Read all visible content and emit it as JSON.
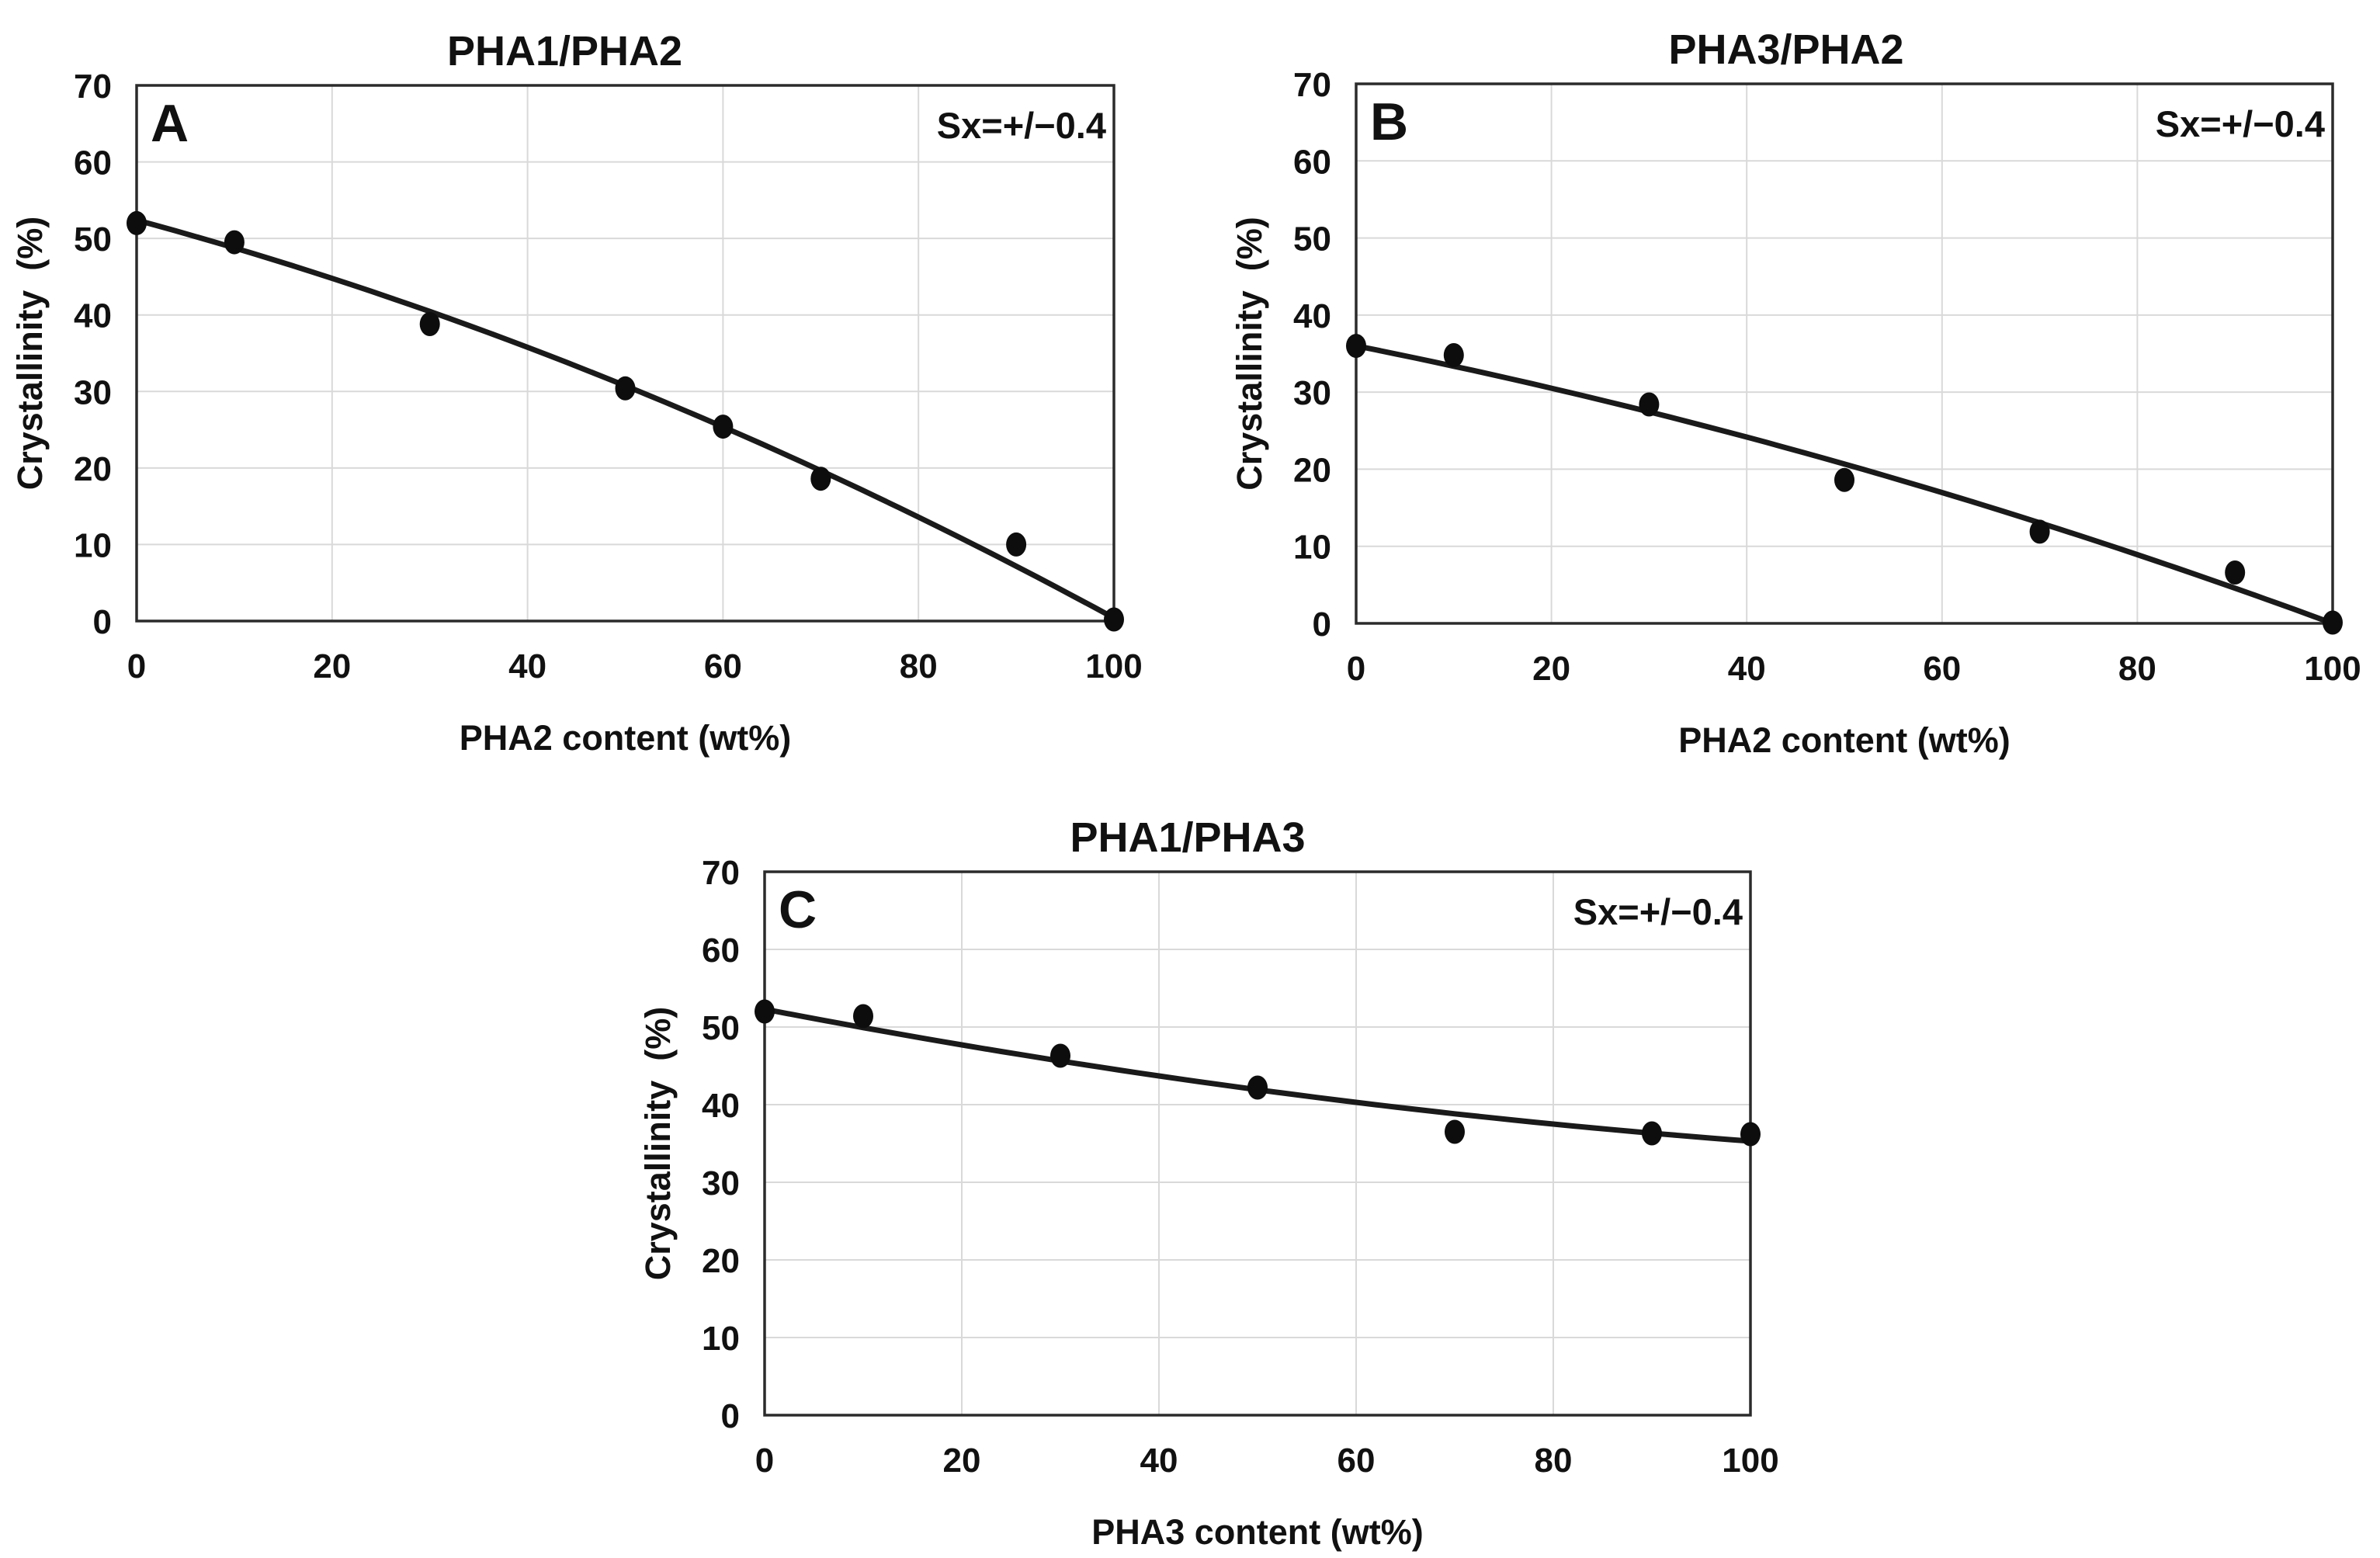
{
  "page": {
    "background": "#ffffff",
    "description": "Three-panel scatter figure of crystallinity versus blend content for PHA blends"
  },
  "style": {
    "text_color": "#111111",
    "point_color": "#0d0d0d",
    "line_color": "#1a1a1a",
    "grid_color": "#d9d9d9",
    "border_color": "#2b2b2b"
  },
  "chart_data": [
    {
      "type": "scatter",
      "panel_label": "A",
      "title": "PHA1/PHA2",
      "annotation": "Sx=+/−0.4",
      "xlabel": "PHA2 content (wt%)",
      "ylabel": "Crystallinity  (%)",
      "xlim": [
        0,
        100
      ],
      "ylim": [
        0,
        70
      ],
      "grid": true,
      "legend": "none",
      "x_ticks": [
        {
          "v": 0,
          "label": "0"
        },
        {
          "v": 20,
          "label": "20"
        },
        {
          "v": 40,
          "label": "40"
        },
        {
          "v": 60,
          "label": "60"
        },
        {
          "v": 80,
          "label": "80"
        },
        {
          "v": 100,
          "label": "100"
        }
      ],
      "y_ticks": [
        {
          "v": 0,
          "label": "0"
        },
        {
          "v": 10,
          "label": "10"
        },
        {
          "v": 20,
          "label": "20"
        },
        {
          "v": 30,
          "label": "30"
        },
        {
          "v": 40,
          "label": "40"
        },
        {
          "v": 50,
          "label": "50"
        },
        {
          "v": 60,
          "label": "60"
        },
        {
          "v": 70,
          "label": "70"
        }
      ],
      "points": [
        [
          0,
          52.0
        ],
        [
          10,
          49.5
        ],
        [
          30,
          38.8
        ],
        [
          50,
          30.4
        ],
        [
          60,
          25.4
        ],
        [
          70,
          18.6
        ],
        [
          90,
          10.0
        ],
        [
          100,
          0.2
        ]
      ],
      "trend": {
        "kind": "quadratic",
        "a": 52.4,
        "b": -0.346,
        "c": -0.00174,
        "x_range": [
          0,
          100
        ]
      }
    },
    {
      "type": "scatter",
      "panel_label": "B",
      "title": "PHA3/PHA2",
      "annotation": "Sx=+/−0.4",
      "xlabel": "PHA2 content (wt%)",
      "ylabel": "Crystallinity  (%)",
      "xlim": [
        0,
        100
      ],
      "ylim": [
        0,
        70
      ],
      "grid": true,
      "legend": "none",
      "x_ticks": [
        {
          "v": 0,
          "label": "0"
        },
        {
          "v": 20,
          "label": "20"
        },
        {
          "v": 40,
          "label": "40"
        },
        {
          "v": 60,
          "label": "60"
        },
        {
          "v": 80,
          "label": "80"
        },
        {
          "v": 100,
          "label": "100"
        }
      ],
      "y_ticks": [
        {
          "v": 0,
          "label": "0"
        },
        {
          "v": 10,
          "label": "10"
        },
        {
          "v": 20,
          "label": "20"
        },
        {
          "v": 30,
          "label": "30"
        },
        {
          "v": 40,
          "label": "40"
        },
        {
          "v": 50,
          "label": "50"
        },
        {
          "v": 60,
          "label": "60"
        },
        {
          "v": 70,
          "label": "70"
        }
      ],
      "points": [
        [
          0,
          36.0
        ],
        [
          10,
          34.8
        ],
        [
          30,
          28.4
        ],
        [
          50,
          18.6
        ],
        [
          70,
          11.9
        ],
        [
          90,
          6.6
        ],
        [
          100,
          0.1
        ]
      ],
      "trend": {
        "kind": "quadratic",
        "a": 36.0,
        "b": -0.253,
        "c": -0.00107,
        "x_range": [
          0,
          100
        ]
      }
    },
    {
      "type": "scatter",
      "panel_label": "C",
      "title": "PHA1/PHA3",
      "annotation": "Sx=+/−0.4",
      "xlabel": "PHA3 content (wt%)",
      "ylabel": "Crystallinity  (%)",
      "xlim": [
        0,
        100
      ],
      "ylim": [
        0,
        70
      ],
      "grid": true,
      "legend": "none",
      "x_ticks": [
        {
          "v": 0,
          "label": "0"
        },
        {
          "v": 20,
          "label": "20"
        },
        {
          "v": 40,
          "label": "40"
        },
        {
          "v": 60,
          "label": "60"
        },
        {
          "v": 80,
          "label": "80"
        },
        {
          "v": 100,
          "label": "100"
        }
      ],
      "y_ticks": [
        {
          "v": 0,
          "label": "0"
        },
        {
          "v": 10,
          "label": "10"
        },
        {
          "v": 20,
          "label": "20"
        },
        {
          "v": 30,
          "label": "30"
        },
        {
          "v": 40,
          "label": "40"
        },
        {
          "v": 50,
          "label": "50"
        },
        {
          "v": 60,
          "label": "60"
        },
        {
          "v": 70,
          "label": "70"
        }
      ],
      "points": [
        [
          0,
          52.0
        ],
        [
          10,
          51.4
        ],
        [
          30,
          46.3
        ],
        [
          50,
          42.2
        ],
        [
          70,
          36.5
        ],
        [
          90,
          36.3
        ],
        [
          100,
          36.2
        ]
      ],
      "trend": {
        "kind": "quadratic",
        "a": 52.3,
        "b": -0.245,
        "c": 0.00075,
        "x_range": [
          0,
          100
        ]
      }
    }
  ]
}
